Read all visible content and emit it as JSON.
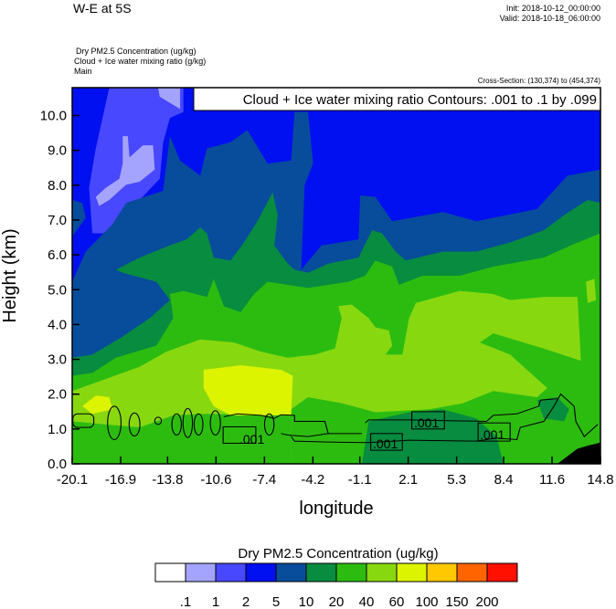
{
  "header": {
    "title": "W-E at 5S",
    "init": "Init: 2018-10-12_00:00:00",
    "valid": "Valid: 2018-10-18_06:00:00",
    "field1": "Dry PM2.5 Concentration   (ug/kg)",
    "field2": "Cloud + Ice water mixing ratio   (g/kg)",
    "field3": "Main",
    "cross_section": "Cross-Section: (130,374) to (454,374)"
  },
  "chart_data": {
    "type": "heatmap",
    "subtype": "filled-contour cross-section with line contours",
    "xlabel": "longitude",
    "ylabel": "Height (km)",
    "xlim": [
      -20.1,
      14.8
    ],
    "ylim": [
      0,
      10.8
    ],
    "x_ticks": [
      "-20.1",
      "-16.9",
      "-13.8",
      "-10.6",
      "-7.4",
      "-4.2",
      "-1.1",
      "2.1",
      "5.3",
      "8.4",
      "11.6",
      "14.8"
    ],
    "x_tick_values": [
      -20.1,
      -16.9,
      -13.8,
      -10.6,
      -7.4,
      -4.2,
      -1.1,
      2.1,
      5.3,
      8.4,
      11.6,
      14.8
    ],
    "y_ticks": [
      "0.0",
      "1.0",
      "2.0",
      "3.0",
      "4.0",
      "5.0",
      "6.0",
      "7.0",
      "8.0",
      "9.0",
      "10.0"
    ],
    "y_tick_values": [
      0,
      1,
      2,
      3,
      4,
      5,
      6,
      7,
      8,
      9,
      10
    ],
    "contour_legend": "Cloud + Ice water mixing ratio Contours: .001 to .1 by .099",
    "contour_labels": [
      ".001",
      ".001",
      ".001",
      ".001"
    ],
    "colorbar": {
      "title": "Dry PM2.5 Concentration  (ug/kg)",
      "levels": [
        ".1",
        "1",
        "2",
        "5",
        "10",
        "20",
        "40",
        "60",
        "100",
        "150",
        "200"
      ],
      "colors": [
        "#ffffff",
        "#a4a4ff",
        "#4848ff",
        "#0010f0",
        "#084c9c",
        "#088c40",
        "#2cbc10",
        "#88d810",
        "#dcf400",
        "#ffc800",
        "#ff6400",
        "#ff1000"
      ]
    }
  }
}
